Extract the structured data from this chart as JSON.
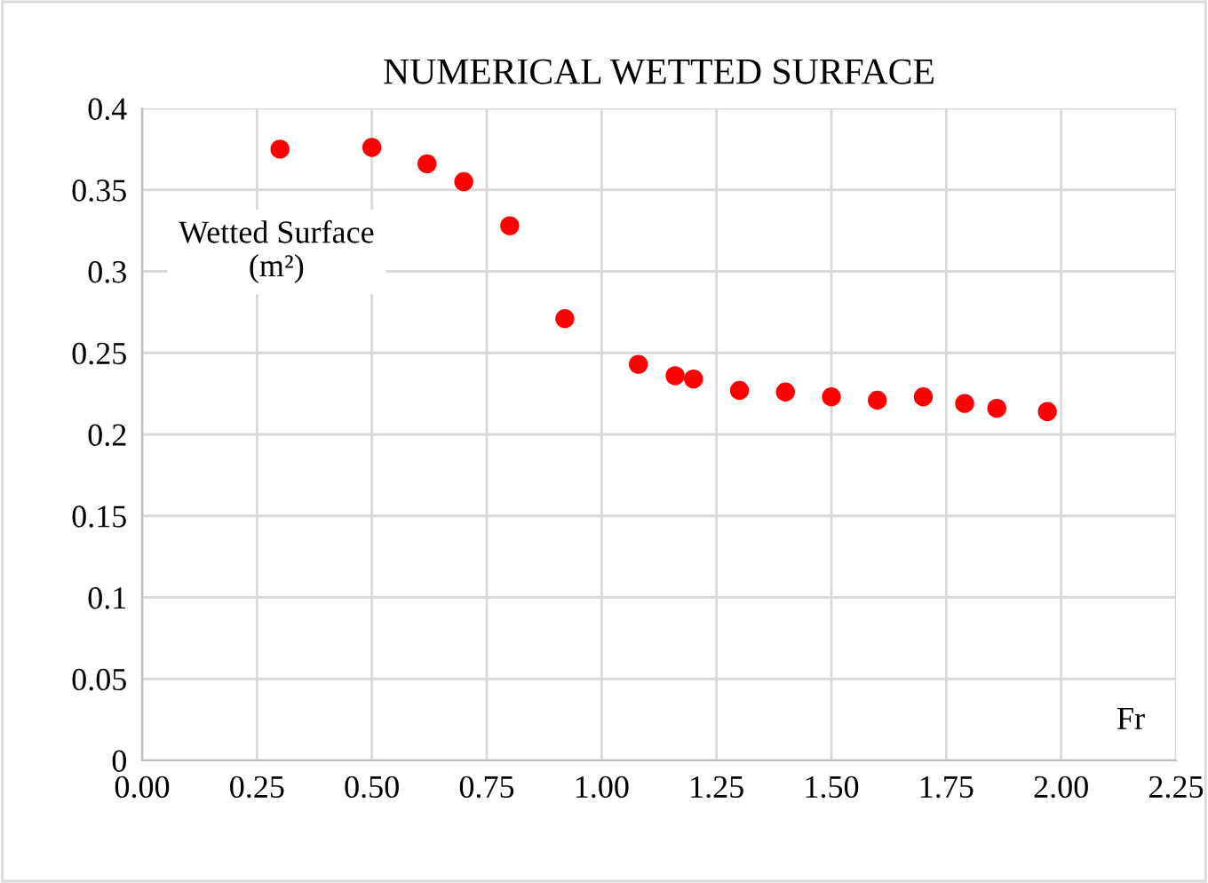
{
  "chart_data": {
    "type": "scatter",
    "title": "NUMERICAL WETTED SURFACE",
    "xlabel": "Fr",
    "ylabel": "Wetted Surface\n(m²)",
    "x": [
      0.3,
      0.5,
      0.62,
      0.7,
      0.8,
      0.92,
      1.08,
      1.16,
      1.2,
      1.3,
      1.4,
      1.5,
      1.6,
      1.7,
      1.79,
      1.86,
      1.97
    ],
    "series": [
      {
        "color": "#ff0000",
        "values": [
          0.375,
          0.376,
          0.366,
          0.355,
          0.328,
          0.271,
          0.243,
          0.236,
          0.234,
          0.227,
          0.226,
          0.223,
          0.221,
          0.223,
          0.219,
          0.216,
          0.214
        ]
      }
    ],
    "xlim": [
      0,
      2.25
    ],
    "xticks": [
      {
        "value": 0,
        "label": "0.00"
      },
      {
        "value": 0.25,
        "label": "0.25"
      },
      {
        "value": 0.5,
        "label": "0.50"
      },
      {
        "value": 0.75,
        "label": "0.75"
      },
      {
        "value": 1,
        "label": "1.00"
      },
      {
        "value": 1.25,
        "label": "1.25"
      },
      {
        "value": 1.5,
        "label": "1.50"
      },
      {
        "value": 1.75,
        "label": "1.75"
      },
      {
        "value": 2,
        "label": "2.00"
      },
      {
        "value": 2.25,
        "label": "2.25"
      }
    ],
    "ylim": [
      0,
      0.4
    ],
    "yticks": [
      0,
      0.05,
      0.1,
      0.15,
      0.2,
      0.25,
      0.3,
      0.35,
      0.4
    ],
    "grid": true,
    "marker": "circle",
    "legend": false
  }
}
